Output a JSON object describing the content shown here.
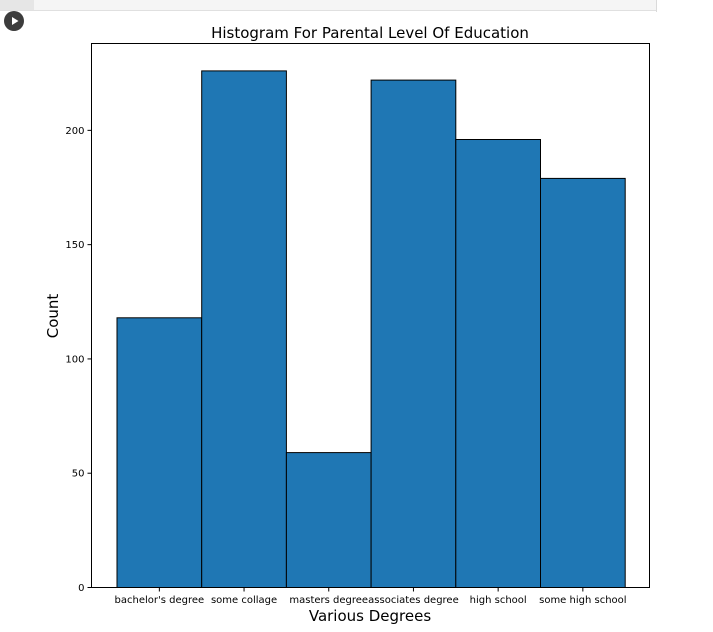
{
  "notebook": {
    "run_icon": "play-icon"
  },
  "colors": {
    "bar_fill": "#1f77b4",
    "bar_edge": "#000000",
    "axes": "#000000",
    "background": "#ffffff"
  },
  "chart_data": {
    "type": "bar",
    "title": "Histogram For Parental Level Of Education",
    "xlabel": "Various Degrees",
    "ylabel": "Count",
    "categories": [
      "bachelor's degree",
      "some collage",
      "masters degree",
      "associates degree",
      "high school",
      "some high school"
    ],
    "values": [
      118,
      226,
      59,
      222,
      196,
      179
    ],
    "yticks": [
      0,
      50,
      100,
      150,
      200
    ],
    "ylim": [
      0,
      238
    ],
    "grid": false,
    "legend": null
  }
}
